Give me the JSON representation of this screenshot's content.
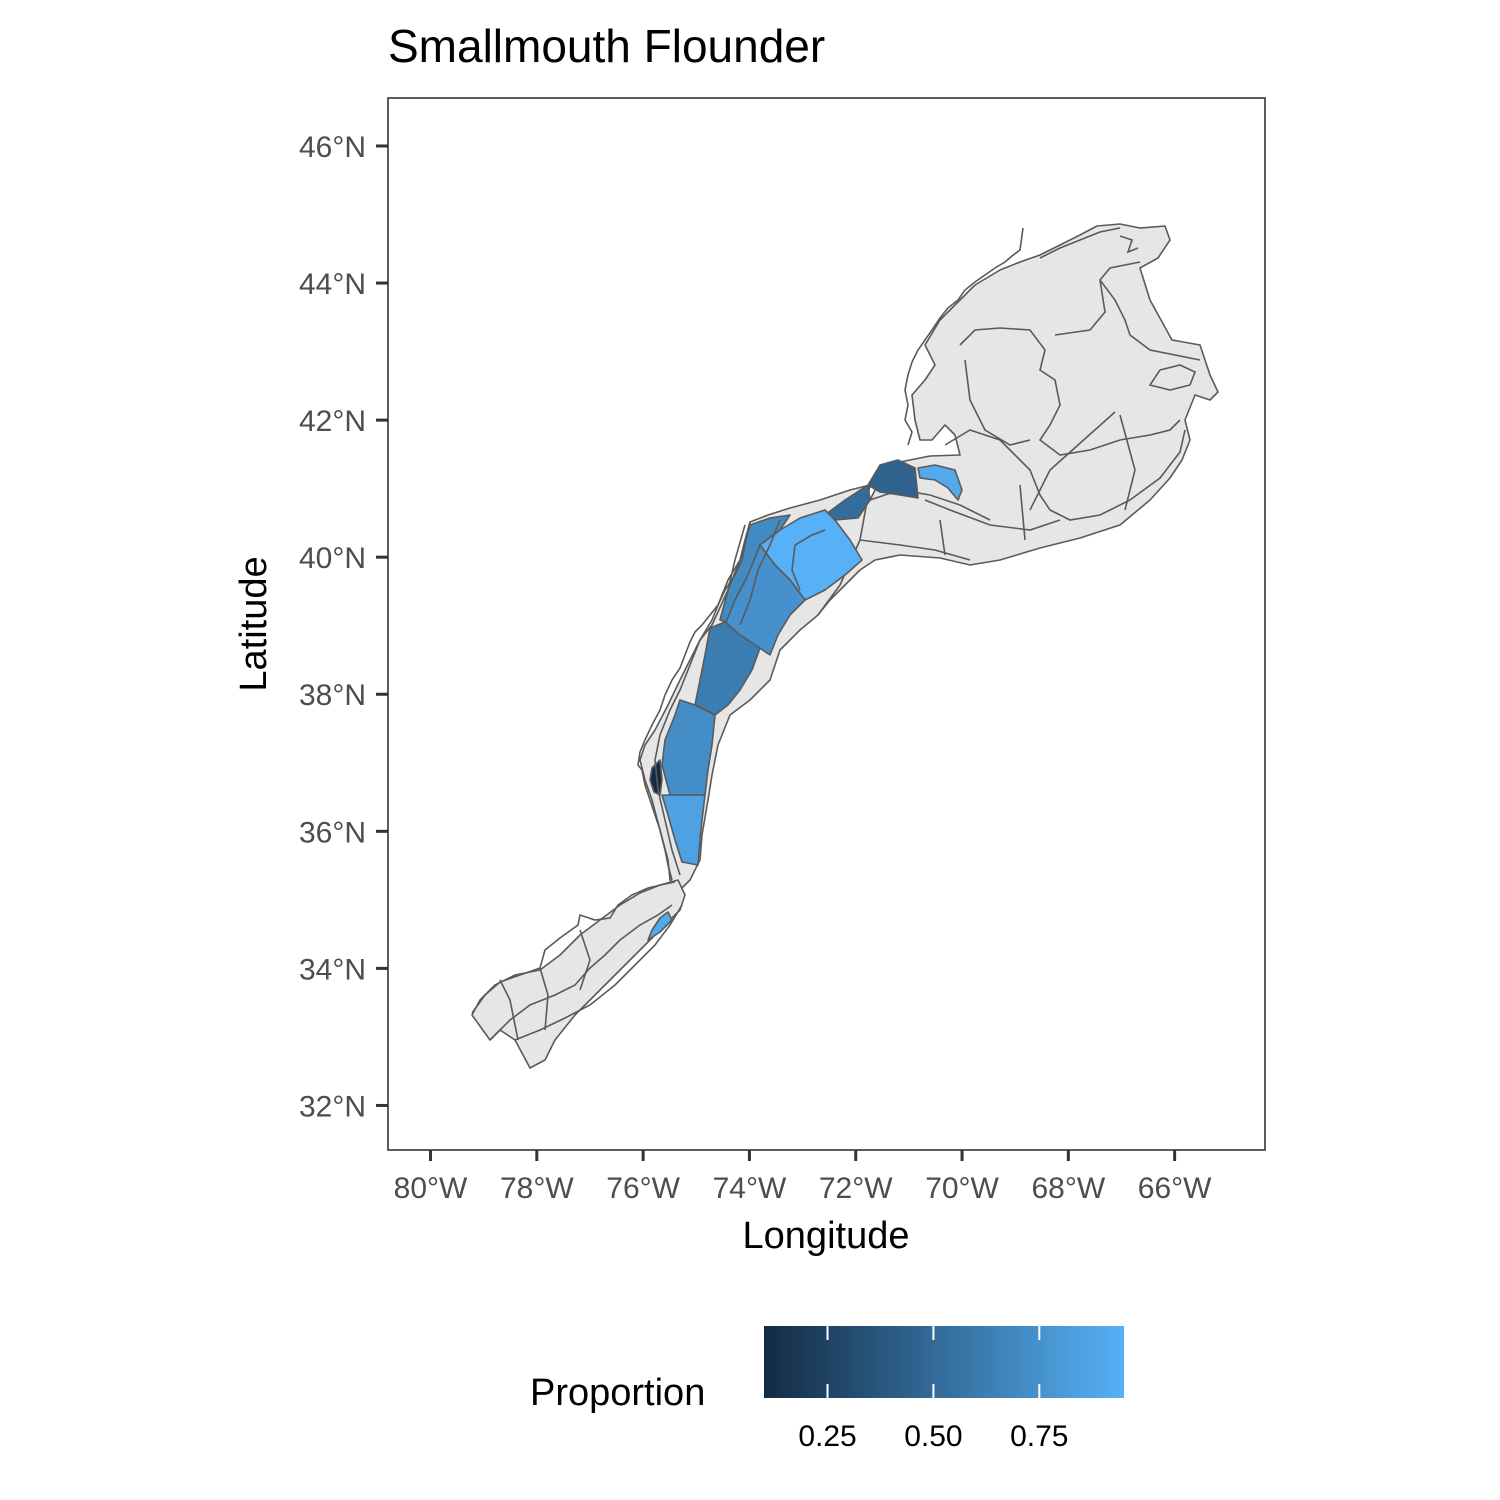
{
  "title": "Smallmouth Flounder",
  "x_axis": {
    "label": "Longitude",
    "ticks": [
      {
        "value": -80,
        "label": "80°W"
      },
      {
        "value": -78,
        "label": "78°W"
      },
      {
        "value": -76,
        "label": "76°W"
      },
      {
        "value": -74,
        "label": "74°W"
      },
      {
        "value": -72,
        "label": "72°W"
      },
      {
        "value": -70,
        "label": "70°W"
      },
      {
        "value": -68,
        "label": "68°W"
      },
      {
        "value": -66,
        "label": "66°W"
      }
    ]
  },
  "y_axis": {
    "label": "Latitude",
    "ticks": [
      {
        "value": 32,
        "label": "32°N"
      },
      {
        "value": 34,
        "label": "34°N"
      },
      {
        "value": 36,
        "label": "36°N"
      },
      {
        "value": 38,
        "label": "38°N"
      },
      {
        "value": 40,
        "label": "40°N"
      },
      {
        "value": 42,
        "label": "42°N"
      },
      {
        "value": 44,
        "label": "44°N"
      },
      {
        "value": 46,
        "label": "46°N"
      }
    ]
  },
  "legend": {
    "title": "Proportion",
    "position": "bottom",
    "range": [
      0.1,
      0.95
    ],
    "colors": {
      "low": "#132B43",
      "high": "#56B1F7"
    },
    "breaks": [
      {
        "value": 0.25,
        "label": "0.25"
      },
      {
        "value": 0.5,
        "label": "0.50"
      },
      {
        "value": 0.75,
        "label": "0.75"
      }
    ]
  },
  "colors": {
    "no_data_fill": "#e6e6e6",
    "outline": "#5a5a5a"
  },
  "chart_data": {
    "type": "map",
    "xlim": [
      -80.8,
      -64.3
    ],
    "ylim": [
      31.35,
      46.7
    ],
    "grid": false,
    "fill_variable": "Proportion",
    "highlighted_strata": [
      {
        "lon": -71.2,
        "lat": 41.2,
        "proportion": 0.45
      },
      {
        "lon": -72.0,
        "lat": 40.8,
        "proportion": 0.52
      },
      {
        "lon": -70.2,
        "lat": 41.15,
        "proportion": 0.9
      },
      {
        "lon": -73.3,
        "lat": 40.05,
        "proportion": 0.95
      },
      {
        "lon": -74.3,
        "lat": 39.8,
        "proportion": 0.7
      },
      {
        "lon": -73.8,
        "lat": 39.3,
        "proportion": 0.75
      },
      {
        "lon": -74.8,
        "lat": 38.3,
        "proportion": 0.62
      },
      {
        "lon": -75.2,
        "lat": 37.2,
        "proportion": 0.72
      },
      {
        "lon": -75.3,
        "lat": 36.1,
        "proportion": 0.85
      },
      {
        "lon": -75.75,
        "lat": 36.9,
        "proportion": 0.1
      },
      {
        "lon": -76.3,
        "lat": 34.6,
        "proportion": 0.9
      }
    ]
  }
}
